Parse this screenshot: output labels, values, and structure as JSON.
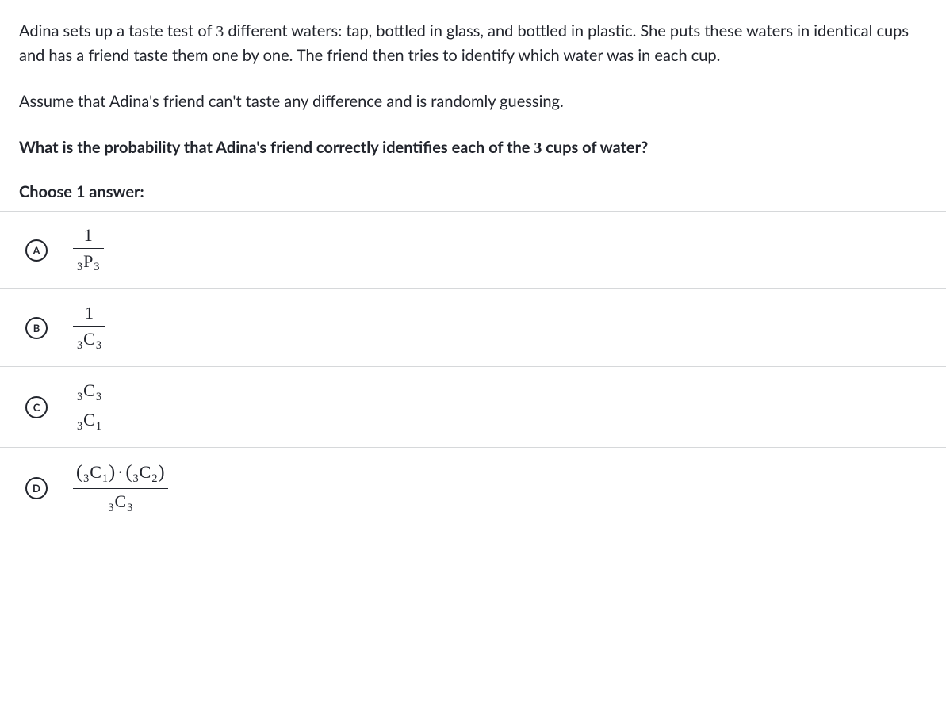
{
  "question": {
    "intro_html": "Adina sets up a taste test of <span class='math'>3</span> different waters: tap, bottled in glass, and bottled in plastic. She puts these waters in identical cups and has a friend taste them one by one. The friend then tries to identify which water was in each cup.",
    "assumption_html": "Assume that Adina's friend can't taste any difference and is randomly guessing.",
    "prompt_html": "What is the probability that Adina's friend correctly identifies each of the <span class='math'>3</span> cups of water?",
    "choose_label": "Choose 1 answer:"
  },
  "answers": [
    {
      "letter": "A",
      "formula_html": "<span class='frac'><span class='num'>1</span><span class='den'><span class='sub'>3</span>P<span class='sub'>3</span></span></span>"
    },
    {
      "letter": "B",
      "formula_html": "<span class='frac'><span class='num'>1</span><span class='den'><span class='sub'>3</span>C<span class='sub'>3</span></span></span>"
    },
    {
      "letter": "C",
      "formula_html": "<span class='frac'><span class='num'><span class='sub'>3</span>C<span class='sub'>3</span></span><span class='den'><span class='sub'>3</span>C<span class='sub'>1</span></span></span>"
    },
    {
      "letter": "D",
      "formula_html": "<span class='frac'><span class='num'><span class='paren'>(</span><span class='sub'>3</span>C<span class='sub'>1</span><span class='paren'>)</span><span class='op'>&middot;</span><span class='paren'>(</span><span class='sub'>3</span>C<span class='sub'>2</span><span class='paren'>)</span></span><span class='den'><span class='sub'>3</span>C<span class='sub'>3</span></span></span>"
    }
  ],
  "colors": {
    "text": "#21242c",
    "divider": "#d6d8da",
    "background": "#ffffff"
  }
}
